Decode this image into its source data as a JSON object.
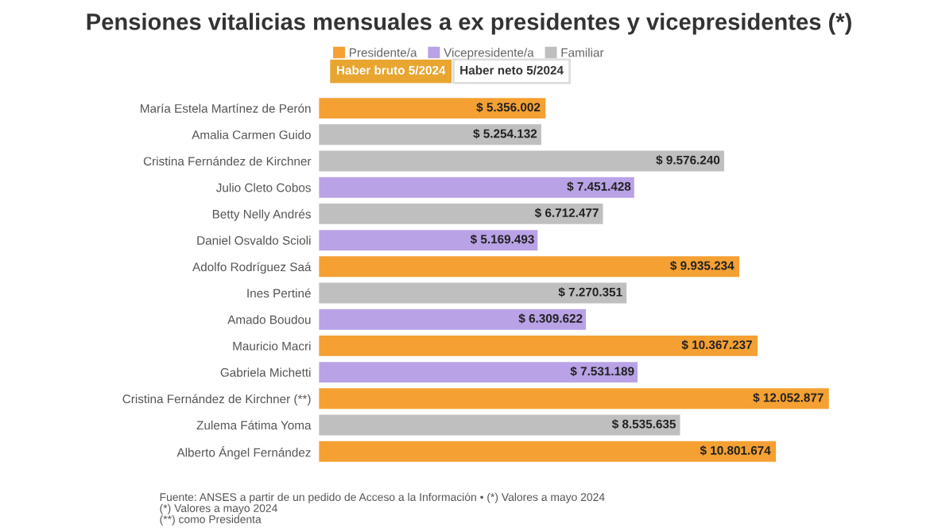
{
  "chart_data": {
    "type": "bar",
    "orientation": "horizontal",
    "title": "Pensiones vitalicias mensuales a ex presidentes y vicepresidentes (*)",
    "categories": [
      "María Estela Martínez de Perón",
      "Amalia Carmen Guido",
      "Cristina Fernández de Kirchner",
      "Julio Cleto Cobos",
      "Betty Nelly Andrés",
      "Daniel Osvaldo Scioli",
      "Adolfo Rodríguez Saá",
      "Ines Pertiné",
      "Amado Boudou",
      "Mauricio Macri",
      "Gabriela Michetti",
      "Cristina Fernández de Kirchner (**)",
      "Zulema Fátima Yoma",
      "Alberto Ángel Fernández"
    ],
    "series": [
      {
        "name": "Presidente/a",
        "color": "#f5a033",
        "values": [
          5356002,
          null,
          null,
          null,
          null,
          null,
          9935234,
          null,
          null,
          10367237,
          null,
          12052877,
          null,
          10801674
        ],
        "value_labels": [
          "$ 5.356.002",
          null,
          null,
          null,
          null,
          null,
          "$ 9.935.234",
          null,
          null,
          "$ 10.367.237",
          null,
          "$ 12.052.877",
          null,
          "$ 10.801.674"
        ]
      },
      {
        "name": "Vicepresidente/a",
        "color": "#b9a2e6",
        "values": [
          null,
          null,
          null,
          7451428,
          null,
          5169493,
          null,
          null,
          6309622,
          null,
          7531189,
          null,
          null,
          null
        ],
        "value_labels": [
          null,
          null,
          null,
          "$ 7.451.428",
          null,
          "$ 5.169.493",
          null,
          null,
          "$ 6.309.622",
          null,
          "$ 7.531.189",
          null,
          null,
          null
        ]
      },
      {
        "name": "Familiar",
        "color": "#bfbfbf",
        "values": [
          null,
          5254132,
          9576240,
          null,
          6712477,
          null,
          null,
          7270351,
          null,
          null,
          null,
          null,
          8535635,
          null
        ],
        "value_labels": [
          null,
          "$ 5.254.132",
          "$ 9.576.240",
          null,
          "$ 6.712.477",
          null,
          null,
          "$ 7.270.351",
          null,
          null,
          null,
          null,
          "$ 8.535.635",
          null
        ]
      }
    ],
    "legend": "top",
    "annotations": [
      "Haber bruto 5/2024",
      "Haber neto 5/2024",
      "Fuente: ANSES a partir de un pedido de Acceso a la Información • (*) Valores a mayo 2024\n(*) Valores a mayo 2024\n(**) como Presidenta"
    ]
  }
}
